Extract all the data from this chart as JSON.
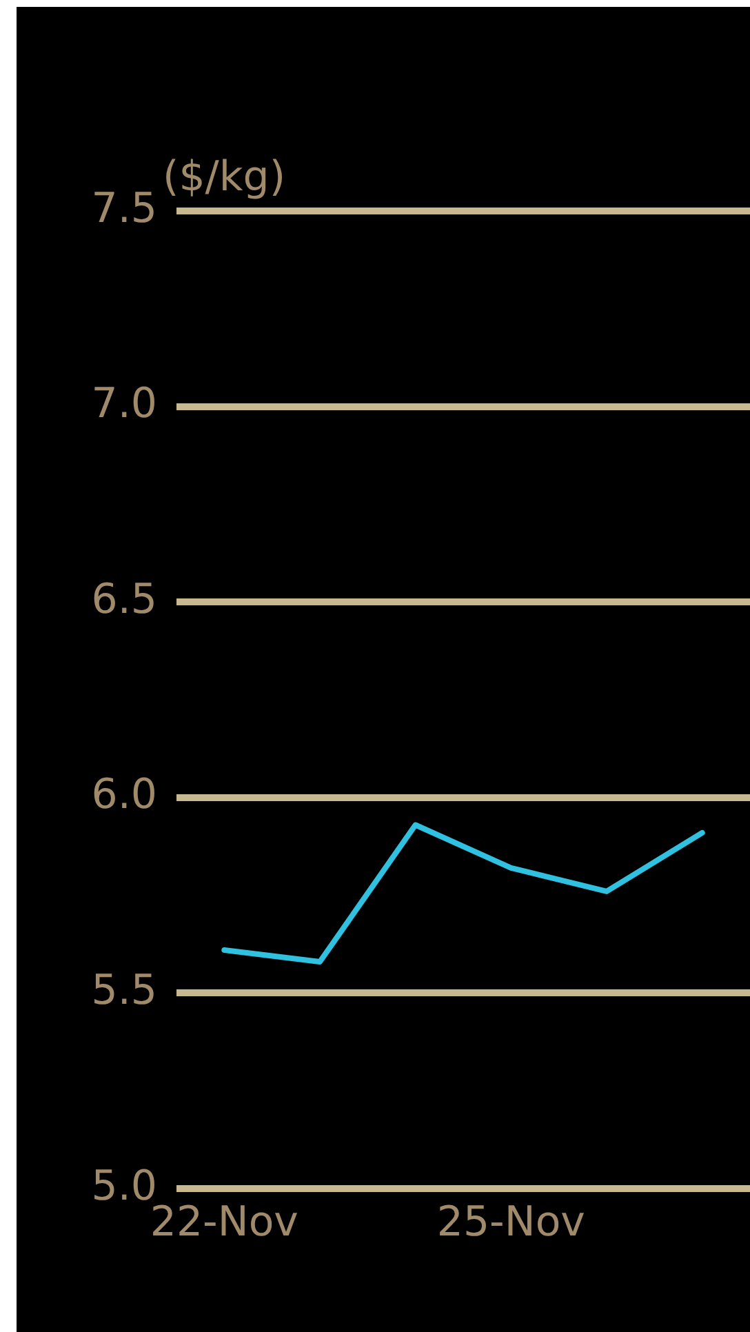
{
  "chart_data": {
    "type": "line",
    "ylabel": "($/kg)",
    "categories": [
      "22-Nov",
      null,
      null,
      "25-Nov",
      null,
      null
    ],
    "series": [
      {
        "color": "#30c0e0",
        "values": [
          5.61,
          5.58,
          5.93,
          5.82,
          5.76,
          5.91
        ]
      }
    ],
    "ylim": [
      5.0,
      7.5
    ],
    "yticks": [
      {
        "value": 5.0,
        "label": "5.0"
      },
      {
        "value": 5.5,
        "label": "5.5"
      },
      {
        "value": 6.0,
        "label": "6.0"
      },
      {
        "value": 6.5,
        "label": "6.5"
      },
      {
        "value": 7.0,
        "label": "7.0"
      },
      {
        "value": 7.5,
        "label": "7.5"
      }
    ],
    "grid": "y",
    "legend": false,
    "marker": "none",
    "line_style": "solid"
  }
}
